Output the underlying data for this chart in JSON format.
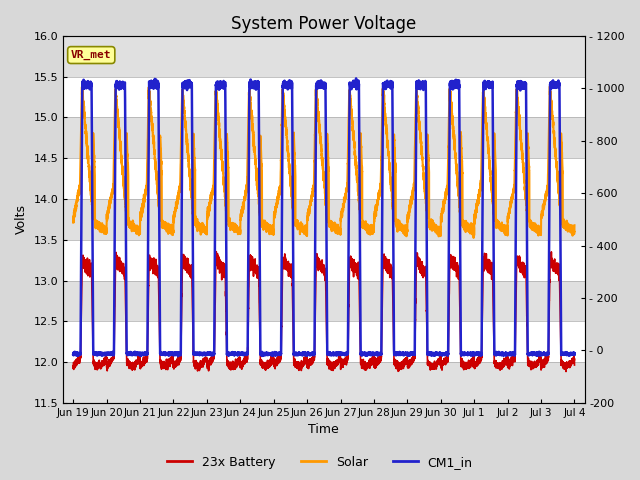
{
  "title": "System Power Voltage",
  "xlabel": "Time",
  "ylabel": "Volts",
  "ylim": [
    11.5,
    16.0
  ],
  "ylim2": [
    -200,
    1200
  ],
  "yticks_left": [
    11.5,
    12.0,
    12.5,
    13.0,
    13.5,
    14.0,
    14.5,
    15.0,
    15.5,
    16.0
  ],
  "yticks2": [
    -200,
    0,
    200,
    400,
    600,
    800,
    1000,
    1200
  ],
  "title_fontsize": 12,
  "label_fontsize": 9,
  "tick_fontsize": 8,
  "legend_fontsize": 9,
  "line_colors": {
    "battery": "#cc0000",
    "solar": "#ff9900",
    "cm1": "#2222cc"
  },
  "line_widths": {
    "battery": 1.2,
    "solar": 1.5,
    "cm1": 1.8
  },
  "vr_met_box": {
    "text": "VR_met",
    "fontsize": 8,
    "fontcolor": "#880000",
    "bg": "#ffff99",
    "border": "#888800"
  },
  "xtick_labels": [
    "Jun 19",
    "Jun 20",
    "Jun 21",
    "Jun 22",
    "Jun 23",
    "Jun 24",
    "Jun 25",
    "Jun 26",
    "Jun 27",
    "Jun 28",
    "Jun 29",
    "Jun 30",
    "Jul 1",
    "Jul 2",
    "Jul 3",
    "Jul 4"
  ],
  "fig_bg": "#d8d8d8",
  "plot_bg": "#ffffff",
  "band_color": "#e0e0e0",
  "num_days": 15
}
